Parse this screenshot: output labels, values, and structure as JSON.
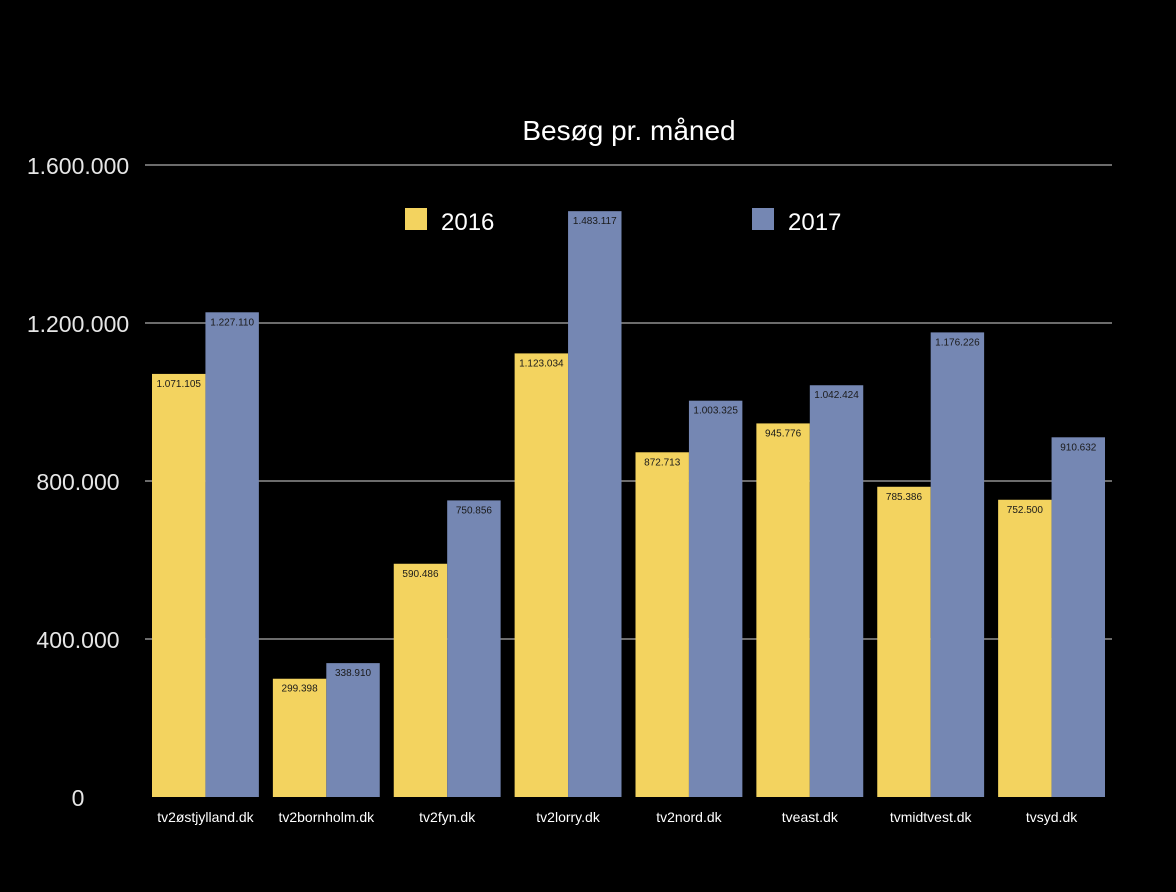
{
  "chart_data": {
    "type": "bar",
    "title": "Besøg pr. måned",
    "xlabel": "",
    "ylabel": "",
    "ylim": [
      0,
      1600000
    ],
    "yticks": [
      0,
      400000,
      800000,
      1200000,
      1600000
    ],
    "ytick_labels": [
      "0",
      "400.000",
      "800.000",
      "1.200.000",
      "1.600.000"
    ],
    "grid": true,
    "legend_position": "top",
    "categories": [
      "tv2østjylland.dk",
      "tv2bornholm.dk",
      "tv2fyn.dk",
      "tv2lorry.dk",
      "tv2nord.dk",
      "tveast.dk",
      "tvmidtvest.dk",
      "tvsyd.dk"
    ],
    "series": [
      {
        "name": "2016",
        "color": "#f3d35f",
        "values": [
          1071105,
          299398,
          590486,
          1123034,
          872713,
          945776,
          785386,
          752500
        ],
        "labels": [
          "1.071.105",
          "299.398",
          "590.486",
          "1.123.034",
          "872.713",
          "945.776",
          "785.386",
          "752.500"
        ]
      },
      {
        "name": "2017",
        "color": "#7587b3",
        "values": [
          1227110,
          338910,
          750856,
          1483117,
          1003325,
          1042424,
          1176226,
          910632
        ],
        "labels": [
          "1.227.110",
          "338.910",
          "750.856",
          "1.483.117",
          "1.003.325",
          "1.042.424",
          "1.176.226",
          "910.632"
        ]
      }
    ]
  }
}
